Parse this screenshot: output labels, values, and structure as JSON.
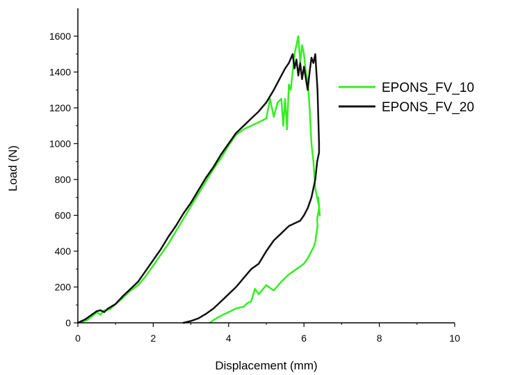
{
  "chart_data": {
    "type": "line",
    "xlabel": "Displacement (mm)",
    "ylabel": "Load (N)",
    "xlim": [
      0,
      10
    ],
    "ylim": [
      0,
      1600
    ],
    "x_ticks": [
      "0",
      "2",
      "4",
      "6",
      "8",
      "10"
    ],
    "y_ticks": [
      "0",
      "200",
      "400",
      "600",
      "800",
      "1000",
      "1200",
      "1400",
      "1600"
    ],
    "grid": false,
    "legend_position": "right",
    "series": [
      {
        "name": "EPONS_FV_10",
        "color": "#33ee22",
        "x": [
          0.0,
          0.1,
          0.25,
          0.4,
          0.5,
          0.6,
          0.7,
          0.85,
          1.0,
          1.2,
          1.4,
          1.6,
          1.8,
          2.0,
          2.2,
          2.4,
          2.6,
          2.8,
          3.0,
          3.2,
          3.4,
          3.6,
          3.8,
          4.0,
          4.2,
          4.4,
          4.6,
          4.8,
          5.0,
          5.1,
          5.2,
          5.3,
          5.4,
          5.45,
          5.5,
          5.55,
          5.6,
          5.65,
          5.7,
          5.75,
          5.8,
          5.85,
          5.9,
          5.95,
          6.0,
          6.05,
          6.1,
          6.15,
          6.2,
          6.25,
          6.3,
          6.35,
          6.4,
          6.42,
          6.38,
          6.4,
          6.35,
          6.36,
          6.3,
          6.25,
          6.2,
          6.1,
          6.0,
          5.8,
          5.6,
          5.4,
          5.2,
          5.0,
          4.8,
          4.7,
          4.6,
          4.5,
          4.4,
          4.2,
          4.0,
          3.8,
          3.6,
          3.5
        ],
        "y": [
          0,
          5,
          15,
          40,
          60,
          45,
          70,
          75,
          105,
          140,
          180,
          210,
          260,
          320,
          380,
          440,
          510,
          580,
          650,
          720,
          790,
          860,
          920,
          990,
          1050,
          1080,
          1100,
          1120,
          1140,
          1250,
          1150,
          1230,
          1250,
          1100,
          1250,
          1080,
          1330,
          1300,
          1400,
          1500,
          1550,
          1600,
          1450,
          1550,
          1500,
          1400,
          1350,
          1200,
          1000,
          900,
          750,
          700,
          650,
          600,
          700,
          640,
          580,
          540,
          450,
          420,
          400,
          360,
          330,
          300,
          270,
          230,
          180,
          210,
          160,
          190,
          120,
          110,
          90,
          80,
          60,
          40,
          15,
          0
        ]
      },
      {
        "name": "EPONS_FV_20",
        "color": "#111111",
        "x": [
          0.0,
          0.2,
          0.4,
          0.5,
          0.6,
          0.7,
          0.8,
          1.0,
          1.2,
          1.4,
          1.6,
          1.8,
          2.0,
          2.2,
          2.4,
          2.6,
          2.8,
          3.0,
          3.2,
          3.4,
          3.6,
          3.8,
          4.0,
          4.2,
          4.4,
          4.6,
          4.8,
          5.0,
          5.2,
          5.4,
          5.5,
          5.6,
          5.7,
          5.75,
          5.8,
          5.85,
          5.9,
          5.95,
          6.0,
          6.1,
          6.15,
          6.2,
          6.25,
          6.3,
          6.33,
          6.36,
          6.38,
          6.4,
          6.4,
          6.35,
          6.3,
          6.2,
          6.1,
          6.0,
          5.9,
          5.8,
          5.6,
          5.4,
          5.2,
          5.0,
          4.8,
          4.6,
          4.4,
          4.2,
          4.0,
          3.8,
          3.6,
          3.4,
          3.2,
          3.0,
          2.8
        ],
        "y": [
          0,
          20,
          50,
          65,
          70,
          60,
          80,
          105,
          150,
          190,
          230,
          290,
          350,
          410,
          480,
          540,
          610,
          670,
          740,
          810,
          870,
          940,
          1000,
          1060,
          1100,
          1140,
          1180,
          1230,
          1300,
          1380,
          1420,
          1450,
          1500,
          1420,
          1470,
          1380,
          1450,
          1360,
          1430,
          1300,
          1400,
          1480,
          1450,
          1500,
          1400,
          1300,
          1150,
          1000,
          950,
          900,
          800,
          700,
          640,
          600,
          570,
          560,
          540,
          500,
          460,
          400,
          330,
          300,
          250,
          200,
          160,
          120,
          80,
          50,
          25,
          10,
          0
        ]
      }
    ]
  }
}
